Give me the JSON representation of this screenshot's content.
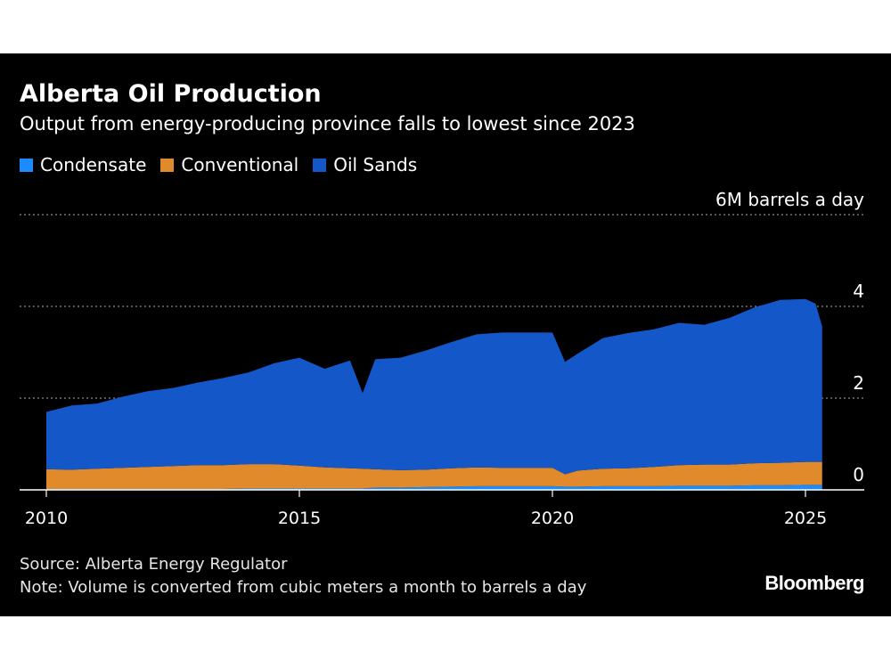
{
  "title": "Alberta Oil Production",
  "subtitle": "Output from energy-producing province falls to lowest since 2023",
  "legend": [
    {
      "label": "Condensate",
      "color": "#1a8cff"
    },
    {
      "label": "Conventional",
      "color": "#e08a2c"
    },
    {
      "label": "Oil Sands",
      "color": "#1457c8"
    }
  ],
  "source": "Source: Alberta Energy Regulator",
  "note": "Note: Volume is converted from cubic meters a month to barrels a day",
  "brand": "Bloomberg",
  "chart_data": {
    "type": "area",
    "stacked": true,
    "title": "Alberta Oil Production",
    "subtitle": "Output from energy-producing province falls to lowest since 2023",
    "unit_label": "6M barrels a day",
    "y_ticks": [
      "0",
      "2",
      "4"
    ],
    "x_ticks": [
      "2010",
      "2015",
      "2020",
      "2025"
    ],
    "xlim": [
      2010.0,
      2026.5
    ],
    "ylim": [
      0,
      6
    ],
    "grid": true,
    "legend_position": "top-left",
    "x": [
      2010.0,
      2010.5,
      2011.0,
      2011.5,
      2012.0,
      2012.5,
      2013.0,
      2013.5,
      2014.0,
      2014.5,
      2015.0,
      2015.5,
      2016.0,
      2016.25,
      2016.5,
      2017.0,
      2017.5,
      2018.0,
      2018.5,
      2019.0,
      2019.5,
      2020.0,
      2020.25,
      2020.5,
      2021.0,
      2021.5,
      2022.0,
      2022.5,
      2023.0,
      2023.5,
      2024.0,
      2024.5,
      2025.0,
      2025.2,
      2025.33
    ],
    "series": [
      {
        "name": "Condensate",
        "color": "#1a8cff",
        "values": [
          0.02,
          0.02,
          0.02,
          0.02,
          0.02,
          0.02,
          0.02,
          0.02,
          0.03,
          0.03,
          0.03,
          0.03,
          0.03,
          0.03,
          0.05,
          0.05,
          0.06,
          0.07,
          0.08,
          0.08,
          0.08,
          0.08,
          0.07,
          0.07,
          0.08,
          0.08,
          0.08,
          0.09,
          0.09,
          0.09,
          0.1,
          0.1,
          0.11,
          0.11,
          0.11
        ]
      },
      {
        "name": "Conventional",
        "color": "#e08a2c",
        "values": [
          0.43,
          0.42,
          0.44,
          0.46,
          0.48,
          0.5,
          0.52,
          0.52,
          0.53,
          0.53,
          0.5,
          0.46,
          0.44,
          0.43,
          0.4,
          0.38,
          0.38,
          0.4,
          0.41,
          0.4,
          0.4,
          0.4,
          0.27,
          0.35,
          0.38,
          0.39,
          0.42,
          0.45,
          0.46,
          0.46,
          0.48,
          0.49,
          0.5,
          0.5,
          0.5
        ]
      },
      {
        "name": "Oil Sands",
        "color": "#1457c8",
        "values": [
          1.25,
          1.4,
          1.42,
          1.55,
          1.65,
          1.7,
          1.8,
          1.9,
          2.0,
          2.2,
          2.35,
          2.15,
          2.35,
          1.65,
          2.4,
          2.45,
          2.6,
          2.75,
          2.9,
          2.95,
          2.95,
          2.95,
          2.45,
          2.55,
          2.85,
          2.95,
          3.0,
          3.1,
          3.05,
          3.2,
          3.4,
          3.55,
          3.55,
          3.45,
          2.95
        ]
      }
    ]
  }
}
